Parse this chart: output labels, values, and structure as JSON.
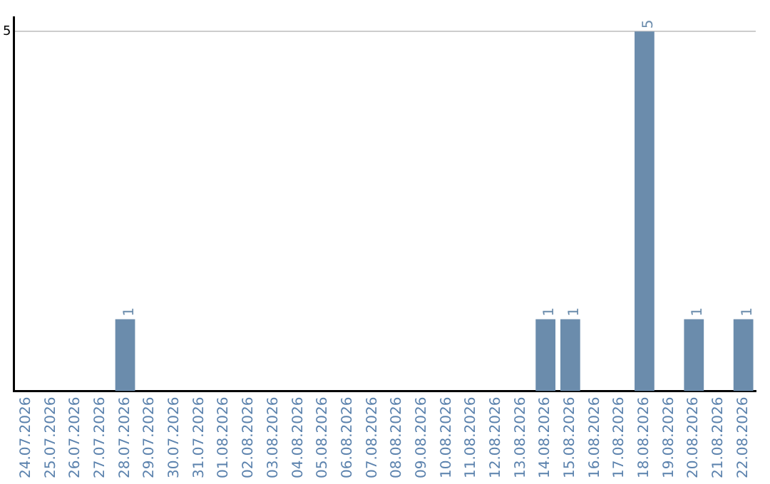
{
  "chart_data": {
    "type": "bar",
    "categories": [
      "24.07.2026",
      "25.07.2026",
      "26.07.2026",
      "27.07.2026",
      "28.07.2026",
      "29.07.2026",
      "30.07.2026",
      "31.07.2026",
      "01.08.2026",
      "02.08.2026",
      "03.08.2026",
      "04.08.2026",
      "05.08.2026",
      "06.08.2026",
      "07.08.2026",
      "08.08.2026",
      "09.08.2026",
      "10.08.2026",
      "11.08.2026",
      "12.08.2026",
      "13.08.2026",
      "14.08.2026",
      "15.08.2026",
      "16.08.2026",
      "17.08.2026",
      "18.08.2026",
      "19.08.2026",
      "20.08.2026",
      "21.08.2026",
      "22.08.2026"
    ],
    "values": [
      0,
      0,
      0,
      0,
      1,
      0,
      0,
      0,
      0,
      0,
      0,
      0,
      0,
      0,
      0,
      0,
      0,
      0,
      0,
      0,
      0,
      1,
      1,
      0,
      0,
      5,
      0,
      1,
      0,
      1
    ],
    "value_labels": [
      null,
      null,
      null,
      null,
      "1",
      null,
      null,
      null,
      null,
      null,
      null,
      null,
      null,
      null,
      null,
      null,
      null,
      null,
      null,
      null,
      null,
      "1",
      "1",
      null,
      null,
      "5",
      null,
      "1",
      null,
      "1"
    ],
    "color": "#6b8cac",
    "ylim": [
      0,
      5.2
    ],
    "yticks": [
      5
    ],
    "grid": "y",
    "legend": false
  }
}
